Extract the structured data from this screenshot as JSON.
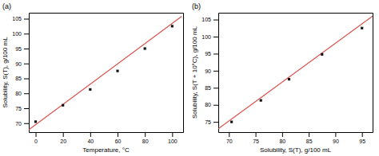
{
  "chart_data": [
    {
      "type": "scatter",
      "title": "(a)",
      "x_label": "Temperature, °C",
      "y_label": "Solubility, S(T), g/100 mL",
      "series": [
        {
          "type": "scatter",
          "marker": "square",
          "color": "#111111",
          "x": [
            0,
            20,
            40,
            60,
            80,
            100
          ],
          "values": [
            70.5,
            76.0,
            81.3,
            87.5,
            95.0,
            102.5
          ]
        },
        {
          "type": "line",
          "line_style": "solid",
          "color": "#d9534f",
          "x": [
            -5,
            107
          ],
          "values": [
            67.8,
            105.8
          ]
        }
      ],
      "xlim": [
        -5,
        108
      ],
      "ylim": [
        67,
        107
      ],
      "xticks": [
        0,
        20,
        40,
        60,
        80,
        100
      ],
      "yticks": [
        70,
        75,
        80,
        85,
        90,
        95,
        100,
        105
      ],
      "grid": false
    },
    {
      "type": "scatter",
      "title": "(b)",
      "x_label": "Solubility, S(T), g/100 mL",
      "y_label": "Solubility, S(T + 10°C), g/100 mL",
      "series": [
        {
          "type": "scatter",
          "marker": "square",
          "color": "#111111",
          "x": [
            70.5,
            76.0,
            81.3,
            87.5,
            95.0
          ],
          "values": [
            75.0,
            81.3,
            87.5,
            94.8,
            102.5
          ]
        },
        {
          "type": "line",
          "line_style": "solid",
          "color": "#d9534f",
          "x": [
            68,
            97
          ],
          "values": [
            73.0,
            106.0
          ]
        }
      ],
      "xlim": [
        68,
        97
      ],
      "ylim": [
        72,
        107
      ],
      "xticks": [
        70,
        75,
        80,
        85,
        90,
        95
      ],
      "yticks": [
        75,
        80,
        85,
        90,
        95,
        100,
        105
      ],
      "grid": false
    }
  ]
}
